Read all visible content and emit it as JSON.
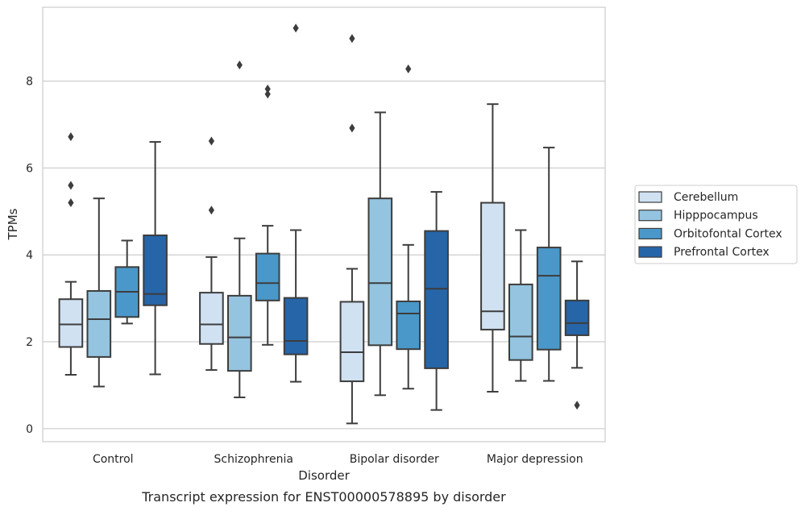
{
  "chart_data": {
    "type": "box",
    "title": "",
    "caption": "Transcript expression for ENST00000578895 by disorder",
    "xlabel": "Disorder",
    "ylabel": "TPMs",
    "ylim": [
      -0.3,
      9.7
    ],
    "yticks": [
      0,
      2,
      4,
      6,
      8
    ],
    "grid": true,
    "legend_position": "right",
    "categories": [
      "Control",
      "Schizophrenia",
      "Bipolar disorder",
      "Major depression"
    ],
    "series": [
      {
        "name": "Cerebellum",
        "color": "#d0e1f2",
        "boxes": [
          {
            "whisker_low": 1.24,
            "q1": 1.88,
            "median": 2.4,
            "q3": 2.98,
            "whisker_high": 3.38,
            "outliers": [
              5.2,
              5.6,
              6.72
            ]
          },
          {
            "whisker_low": 1.35,
            "q1": 1.95,
            "median": 2.4,
            "q3": 3.13,
            "whisker_high": 3.95,
            "outliers": [
              5.03,
              6.62
            ]
          },
          {
            "whisker_low": 0.12,
            "q1": 1.09,
            "median": 1.76,
            "q3": 2.92,
            "whisker_high": 3.68,
            "outliers": [
              6.92,
              8.98
            ]
          },
          {
            "whisker_low": 0.85,
            "q1": 2.28,
            "median": 2.7,
            "q3": 5.2,
            "whisker_high": 7.47,
            "outliers": []
          }
        ]
      },
      {
        "name": "Hipppocampus",
        "color": "#94c4df",
        "boxes": [
          {
            "whisker_low": 0.97,
            "q1": 1.65,
            "median": 2.52,
            "q3": 3.17,
            "whisker_high": 5.3,
            "outliers": []
          },
          {
            "whisker_low": 0.72,
            "q1": 1.33,
            "median": 2.1,
            "q3": 3.06,
            "whisker_high": 4.38,
            "outliers": [
              8.37
            ]
          },
          {
            "whisker_low": 0.77,
            "q1": 1.92,
            "median": 3.35,
            "q3": 5.3,
            "whisker_high": 7.28,
            "outliers": []
          },
          {
            "whisker_low": 1.1,
            "q1": 1.58,
            "median": 2.12,
            "q3": 3.32,
            "whisker_high": 4.57,
            "outliers": []
          }
        ]
      },
      {
        "name": "Orbitofontal Cortex",
        "color": "#4a98c9",
        "boxes": [
          {
            "whisker_low": 2.42,
            "q1": 2.57,
            "median": 3.15,
            "q3": 3.72,
            "whisker_high": 4.33,
            "outliers": []
          },
          {
            "whisker_low": 1.93,
            "q1": 2.95,
            "median": 3.35,
            "q3": 4.03,
            "whisker_high": 4.67,
            "outliers": [
              7.7,
              7.82
            ]
          },
          {
            "whisker_low": 0.92,
            "q1": 1.83,
            "median": 2.65,
            "q3": 2.93,
            "whisker_high": 4.23,
            "outliers": [
              8.28
            ]
          },
          {
            "whisker_low": 1.1,
            "q1": 1.82,
            "median": 3.52,
            "q3": 4.17,
            "whisker_high": 6.47,
            "outliers": []
          }
        ]
      },
      {
        "name": "Prefrontal Cortex",
        "color": "#2565a8",
        "boxes": [
          {
            "whisker_low": 1.25,
            "q1": 2.84,
            "median": 3.1,
            "q3": 4.45,
            "whisker_high": 6.6,
            "outliers": []
          },
          {
            "whisker_low": 1.08,
            "q1": 1.71,
            "median": 2.02,
            "q3": 3.01,
            "whisker_high": 4.57,
            "outliers": [
              9.22
            ]
          },
          {
            "whisker_low": 0.43,
            "q1": 1.39,
            "median": 3.22,
            "q3": 4.55,
            "whisker_high": 5.45,
            "outliers": []
          },
          {
            "whisker_low": 1.4,
            "q1": 2.15,
            "median": 2.43,
            "q3": 2.95,
            "whisker_high": 3.85,
            "outliers": [
              0.54
            ]
          }
        ]
      }
    ]
  }
}
